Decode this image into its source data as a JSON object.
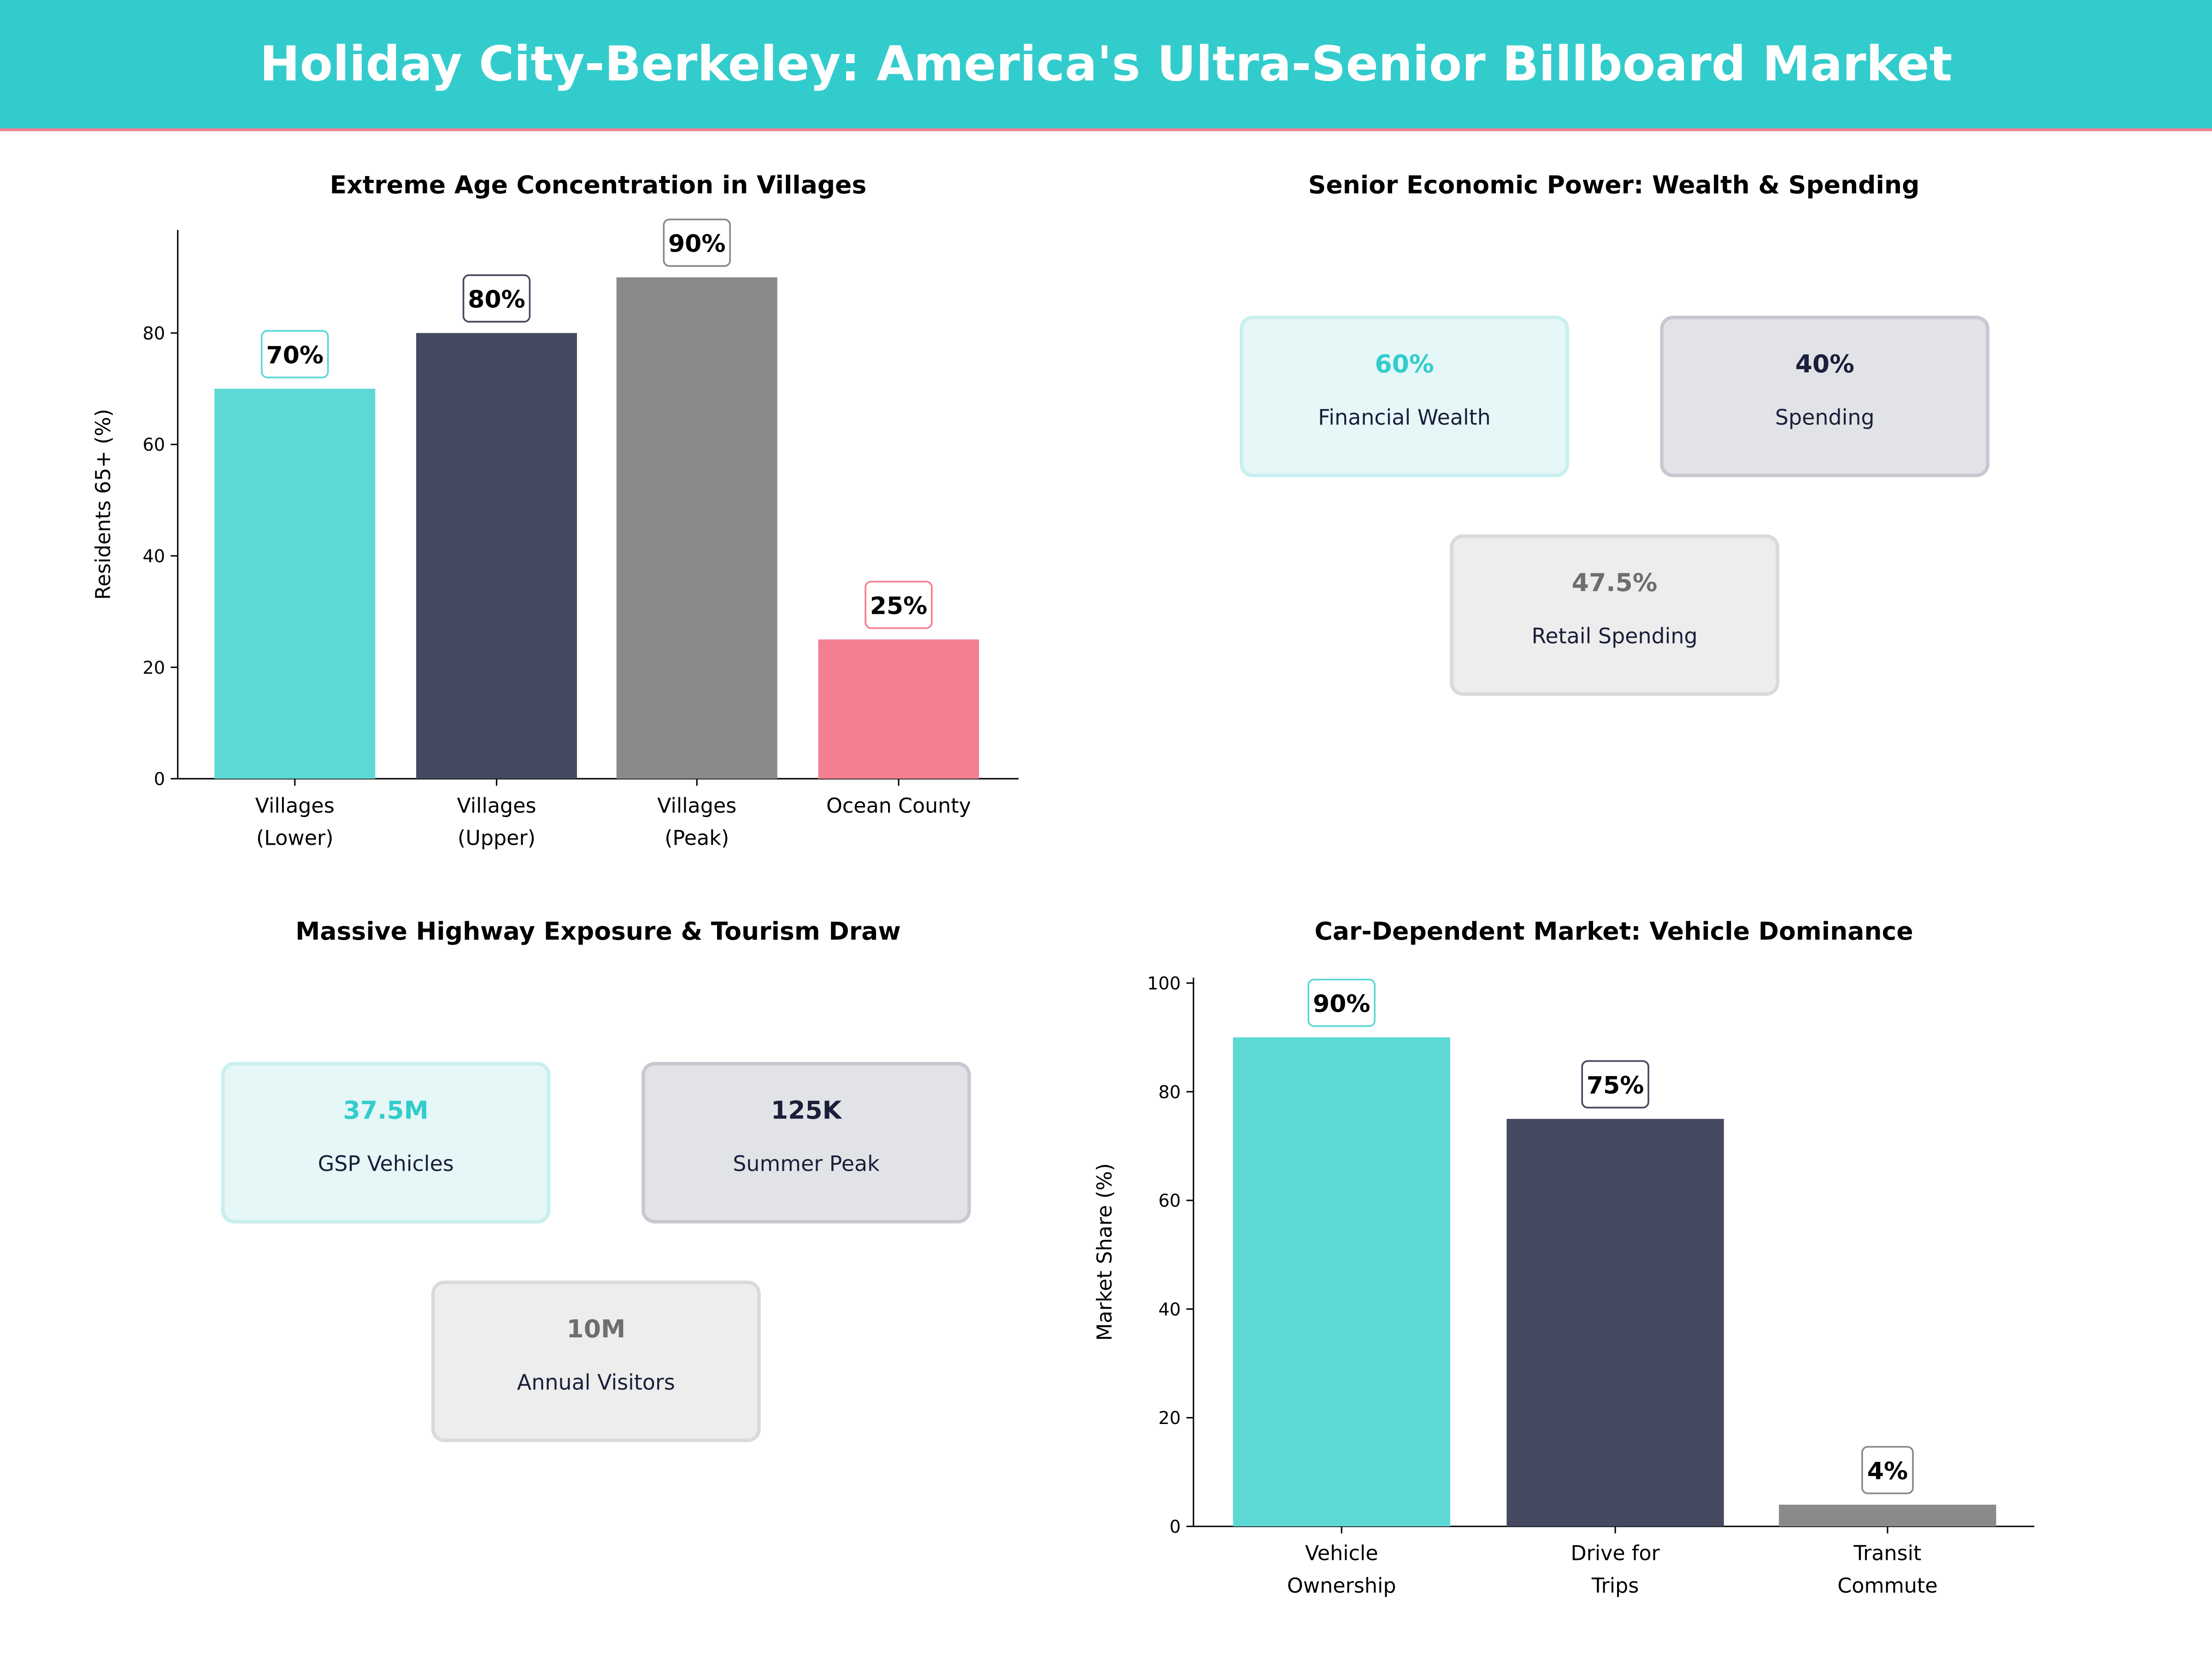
{
  "header": {
    "title": "Holiday City-Berkeley: America's Ultra-Senior Billboard Market",
    "bg": "#33CCCC",
    "accent_line": "#F47F91"
  },
  "chart_data": [
    {
      "type": "bar",
      "title": "Extreme Age Concentration in Villages",
      "categories": [
        [
          "Villages",
          "(Lower)"
        ],
        [
          "Villages",
          "(Upper)"
        ],
        [
          "Villages",
          "(Peak)"
        ],
        [
          "Ocean County"
        ]
      ],
      "values": [
        70,
        80,
        90,
        25
      ],
      "data_labels": [
        "70%",
        "80%",
        "90%",
        "25%"
      ],
      "colors": [
        "#5DD8D5",
        "#454A60",
        "#8A8A8A",
        "#F47F91"
      ],
      "ylabel": "Residents 65+ (%)",
      "ylim": [
        0,
        98.5
      ],
      "yticks": [
        "0",
        "20",
        "40",
        "60",
        "80"
      ],
      "grid": false
    },
    {
      "type": "table",
      "title": "Senior Economic Power: Wealth & Spending",
      "cards": [
        {
          "value": "60%",
          "label": "Financial Wealth",
          "color": "#33CCCC",
          "bg": "#E5F7F7",
          "border": "#C9EFEF"
        },
        {
          "value": "40%",
          "label": "Spending",
          "color": "#1a1f3a",
          "bg": "#E2E3E7",
          "border": "#C8C9D0"
        },
        {
          "value": "47.5%",
          "label": "Retail Spending",
          "color": "#6E6E6E",
          "bg": "#EDEDED",
          "border": "#DADADA"
        }
      ]
    },
    {
      "type": "table",
      "title": "Massive Highway Exposure & Tourism Draw",
      "cards": [
        {
          "value": "37.5M",
          "label": "GSP Vehicles",
          "color": "#33CCCC",
          "bg": "#E5F7F7",
          "border": "#C9EFEF"
        },
        {
          "value": "125K",
          "label": "Summer  Peak",
          "color": "#1a1f3a",
          "bg": "#E2E3E7",
          "border": "#C8C9D0"
        },
        {
          "value": "10M",
          "label": "Annual Visitors",
          "color": "#6E6E6E",
          "bg": "#EDEDED",
          "border": "#DADADA"
        }
      ]
    },
    {
      "type": "bar",
      "title": "Car-Dependent Market: Vehicle Dominance",
      "categories": [
        [
          "Vehicle",
          "Ownership"
        ],
        [
          "Drive for",
          "Trips"
        ],
        [
          "Transit",
          "Commute"
        ]
      ],
      "values": [
        90,
        75,
        4
      ],
      "data_labels": [
        "90%",
        "75%",
        "4%"
      ],
      "colors": [
        "#5DD8D5",
        "#454A60",
        "#8A8A8A"
      ],
      "ylabel": "Market Share (%)",
      "ylim": [
        0,
        101
      ],
      "yticks": [
        "0",
        "20",
        "40",
        "60",
        "80",
        "100"
      ],
      "grid": false
    }
  ]
}
